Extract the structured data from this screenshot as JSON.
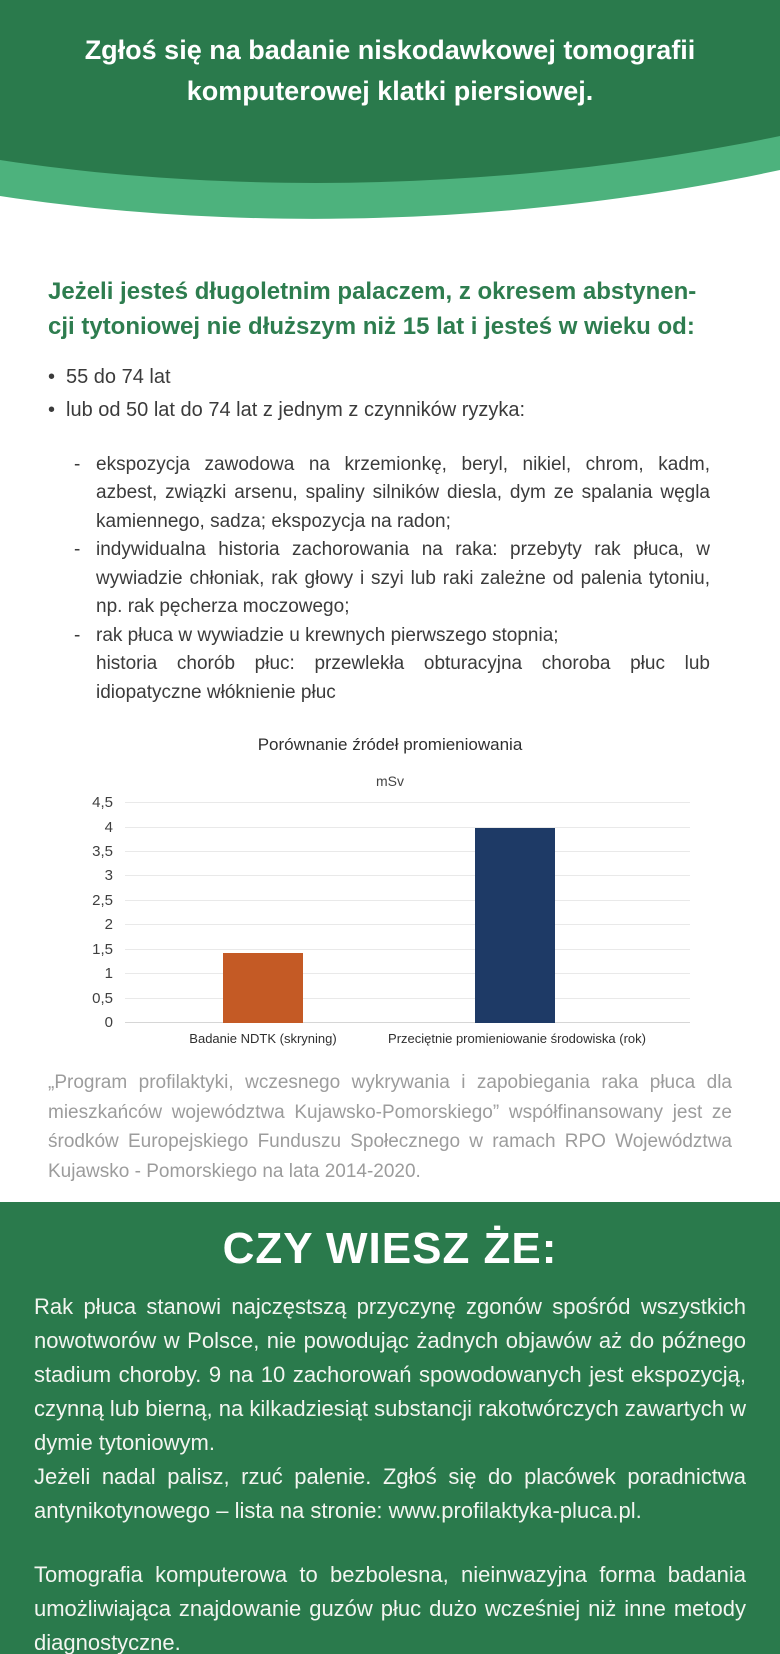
{
  "colors": {
    "green_dark": "#2a7a4c",
    "green_band": "#4db27d",
    "green_heading": "#2e7d4f",
    "funding_gray": "#9c9c9c"
  },
  "header": {
    "title": "Zgłoś się na badanie niskodawkowej tomografii komputerowej klatki piersiowej."
  },
  "eligibility": {
    "heading": "Jeżeli jesteś długoletnim palaczem, z okresem abstynen-\ncji tytoniowej nie dłuższym niż 15 lat i jesteś w wieku od:",
    "bullets": [
      "55 do 74 lat",
      "lub od 50 lat do 74 lat z jednym z czynników ryzyka:"
    ],
    "risk_factors": [
      {
        "marker": "-",
        "text": "ekspozycja zawodowa na krzemionkę, beryl, nikiel, chrom, kadm, azbest, związki arsenu, spaliny silników diesla, dym ze spalania węgla kamiennego, sadza; ekspozycja na radon;"
      },
      {
        "marker": "-",
        "text": "indywidualna historia zachorowania na raka: przebyty rak płuca, w wywiadzie chłoniak, rak głowy i szyi lub raki zależne od palenia tytoniu, np. rak pęcherza moczowego;"
      },
      {
        "marker": "-",
        "text": "rak płuca w wywiadzie u krewnych pierwszego stopnia;"
      },
      {
        "marker": "",
        "text": "historia chorób płuc: przewlekła obturacyjna choroba płuc lub idiopatyczne włóknienie płuc"
      }
    ]
  },
  "chart_data": {
    "type": "bar",
    "title": "Porównanie źródeł promieniowania",
    "unit_label": "mSv",
    "categories": [
      "Badanie NDTK (skryning)",
      "Przeciętnie promieniowanie środowiska (rok)"
    ],
    "values": [
      1.43,
      4
    ],
    "ylim": [
      0,
      4.5
    ],
    "ytick_labels": [
      "0",
      "0,5",
      "1",
      "1,5",
      "2",
      "2,5",
      "3",
      "3,5",
      "4",
      "4,5"
    ],
    "bar_colors": [
      "#c45a25",
      "#1e3a66"
    ],
    "grid": true,
    "legend": "none",
    "xlabel": "",
    "ylabel": "mSv"
  },
  "funding_note": "„Program profilaktyki, wczesnego wykrywania i zapobiegania raka płuca dla mieszkańców województwa Kujawsko-Pomorskiego” współfinansowany jest ze środków Europejskiego Funduszu Społecznego w ramach RPO Województwa Kujawsko - Pomorskiego na lata 2014-2020.",
  "know_section": {
    "heading": "CZY WIESZ ŻE:",
    "paragraphs": [
      "Rak płuca stanowi najczęstszą przyczynę zgonów spośród wszystkich nowotworów w Polsce, nie powodując żadnych objawów aż do późnego stadium choroby. 9 na 10 zachorowań spowodowanych jest ekspozycją, czynną lub bierną, na kilkadziesiąt substancji rakotwórczych zawartych w dymie tytoniowym.",
      "Jeżeli nadal palisz, rzuć palenie. Zgłoś się do placówek poradnictwa antynikotynowego – lista na stronie: www.profilaktyka-pluca.pl.",
      "Tomografia komputerowa to bezbolesna, nieinwazyjna forma badania umożliwiająca znajdowanie guzów płuc dużo wcześniej niż inne metody diagnostyczne."
    ]
  }
}
